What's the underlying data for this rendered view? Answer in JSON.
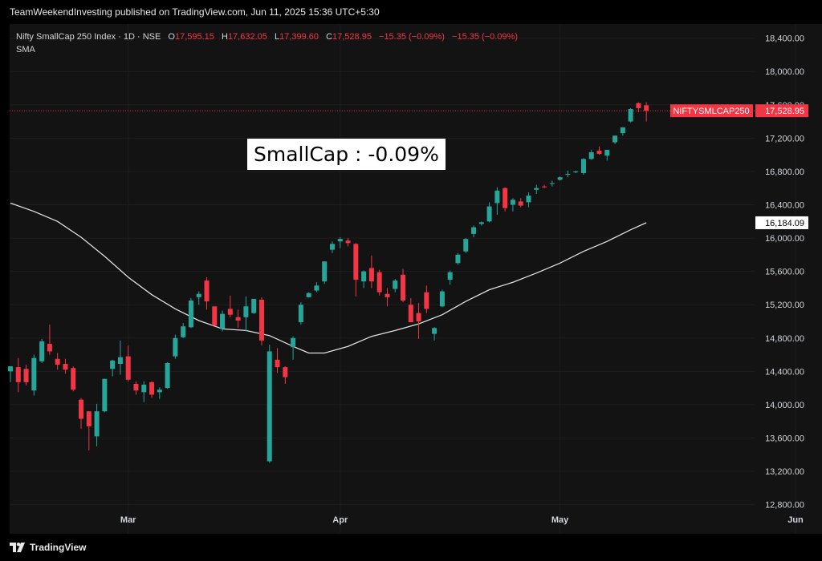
{
  "header": {
    "publisher": "TeamWeekendInvesting published on TradingView.com, Jun 11, 2025 15:36 UTC+5:30"
  },
  "legend": {
    "symbol": "Nifty SmallCap 250 Index · 1D · NSE",
    "open_label": "O",
    "open": "17,595.15",
    "high_label": "H",
    "high": "17,632.05",
    "low_label": "L",
    "low": "17,399.60",
    "close_label": "C",
    "close": "17,528.95",
    "change": "−15.35 (−0.09%)",
    "change2": "−15.35 (−0.09%)",
    "indicator": "SMA"
  },
  "annotation": "SmallCap : -0.09%",
  "footer": {
    "brand": "TradingView"
  },
  "colors": {
    "up": "#26a69a",
    "down": "#f23645",
    "sma": "#e0e0e0",
    "background": "#131313",
    "sma_badge": "#ffffff",
    "last_price_badge": "#f23645"
  },
  "chart_data": {
    "type": "candlestick",
    "symbol_badge": "NIFTYSMLCAP250",
    "last_price": 17528.95,
    "last_price_label": "17,528.95",
    "sma_last_label": "16,184.09",
    "sma_last": 16184.09,
    "ylim": [
      12450,
      18570
    ],
    "y_ticks": [
      {
        "value": 18400,
        "label": "18,400.00"
      },
      {
        "value": 18000,
        "label": "18,000.00"
      },
      {
        "value": 17600,
        "label": "17,600.00"
      },
      {
        "value": 17200,
        "label": "17,200.00"
      },
      {
        "value": 16800,
        "label": "16,800.00"
      },
      {
        "value": 16400,
        "label": "16,400.00"
      },
      {
        "value": 16000,
        "label": "16,000.00"
      },
      {
        "value": 15600,
        "label": "15,600.00"
      },
      {
        "value": 15200,
        "label": "15,200.00"
      },
      {
        "value": 14800,
        "label": "14,800.00"
      },
      {
        "value": 14400,
        "label": "14,400.00"
      },
      {
        "value": 14000,
        "label": "14,000.00"
      },
      {
        "value": 13600,
        "label": "13,600.00"
      },
      {
        "value": 13200,
        "label": "13,200.00"
      },
      {
        "value": 12800,
        "label": "12,800.00"
      }
    ],
    "x_ticks": [
      {
        "index": 15,
        "label": "Mar"
      },
      {
        "index": 42,
        "label": "Apr"
      },
      {
        "index": 70,
        "label": "May"
      },
      {
        "index": 100,
        "label": "Jun"
      }
    ],
    "x_count": 118,
    "candles": [
      {
        "i": 0,
        "o": 14400,
        "h": 14460,
        "l": 14270,
        "c": 14460
      },
      {
        "i": 1,
        "o": 14450,
        "h": 14560,
        "l": 14150,
        "c": 14270
      },
      {
        "i": 2,
        "o": 14430,
        "h": 14480,
        "l": 14230,
        "c": 14270
      },
      {
        "i": 3,
        "o": 14170,
        "h": 14600,
        "l": 14110,
        "c": 14560
      },
      {
        "i": 4,
        "o": 14520,
        "h": 14790,
        "l": 14500,
        "c": 14760
      },
      {
        "i": 5,
        "o": 14730,
        "h": 14960,
        "l": 14600,
        "c": 14640
      },
      {
        "i": 6,
        "o": 14550,
        "h": 14620,
        "l": 14420,
        "c": 14480
      },
      {
        "i": 7,
        "o": 14490,
        "h": 14550,
        "l": 14370,
        "c": 14420
      },
      {
        "i": 8,
        "o": 14440,
        "h": 14460,
        "l": 14160,
        "c": 14180
      },
      {
        "i": 9,
        "o": 14060,
        "h": 14080,
        "l": 13710,
        "c": 13830
      },
      {
        "i": 10,
        "o": 13920,
        "h": 13920,
        "l": 13450,
        "c": 13740
      },
      {
        "i": 11,
        "o": 13620,
        "h": 14010,
        "l": 13500,
        "c": 13920
      },
      {
        "i": 12,
        "o": 13920,
        "h": 14310,
        "l": 13910,
        "c": 14310
      },
      {
        "i": 13,
        "o": 14430,
        "h": 14540,
        "l": 14340,
        "c": 14530
      },
      {
        "i": 14,
        "o": 14490,
        "h": 14770,
        "l": 14360,
        "c": 14570
      },
      {
        "i": 15,
        "o": 14580,
        "h": 14710,
        "l": 14280,
        "c": 14300
      },
      {
        "i": 16,
        "o": 14250,
        "h": 14280,
        "l": 14120,
        "c": 14170
      },
      {
        "i": 17,
        "o": 14150,
        "h": 14280,
        "l": 14030,
        "c": 14240
      },
      {
        "i": 18,
        "o": 14270,
        "h": 14280,
        "l": 14080,
        "c": 14120
      },
      {
        "i": 19,
        "o": 14150,
        "h": 14210,
        "l": 14070,
        "c": 14180
      },
      {
        "i": 20,
        "o": 14200,
        "h": 14510,
        "l": 14190,
        "c": 14500
      },
      {
        "i": 21,
        "o": 14580,
        "h": 14840,
        "l": 14550,
        "c": 14800
      },
      {
        "i": 22,
        "o": 14810,
        "h": 14980,
        "l": 14800,
        "c": 14940
      },
      {
        "i": 23,
        "o": 14930,
        "h": 15280,
        "l": 14920,
        "c": 15250
      },
      {
        "i": 24,
        "o": 15290,
        "h": 15360,
        "l": 15200,
        "c": 15330
      },
      {
        "i": 25,
        "o": 15490,
        "h": 15530,
        "l": 15140,
        "c": 15240
      },
      {
        "i": 26,
        "o": 15180,
        "h": 15180,
        "l": 14990,
        "c": 14950
      },
      {
        "i": 27,
        "o": 14910,
        "h": 15130,
        "l": 14880,
        "c": 15090
      },
      {
        "i": 28,
        "o": 15150,
        "h": 15310,
        "l": 15050,
        "c": 15080
      },
      {
        "i": 29,
        "o": 15050,
        "h": 15140,
        "l": 14920,
        "c": 15010
      },
      {
        "i": 30,
        "o": 15050,
        "h": 15300,
        "l": 14880,
        "c": 15180
      },
      {
        "i": 31,
        "o": 15100,
        "h": 15270,
        "l": 15090,
        "c": 15270
      },
      {
        "i": 32,
        "o": 15260,
        "h": 15290,
        "l": 14710,
        "c": 14770
      },
      {
        "i": 33,
        "o": 13320,
        "h": 14720,
        "l": 13300,
        "c": 14640
      },
      {
        "i": 34,
        "o": 14540,
        "h": 14680,
        "l": 14380,
        "c": 14450
      },
      {
        "i": 35,
        "o": 14450,
        "h": 14460,
        "l": 14250,
        "c": 14330
      },
      {
        "i": 36,
        "o": 14690,
        "h": 14820,
        "l": 14540,
        "c": 14800
      },
      {
        "i": 37,
        "o": 14990,
        "h": 15230,
        "l": 14960,
        "c": 15200
      },
      {
        "i": 38,
        "o": 15290,
        "h": 15350,
        "l": 15290,
        "c": 15340
      },
      {
        "i": 39,
        "o": 15370,
        "h": 15470,
        "l": 15350,
        "c": 15430
      },
      {
        "i": 40,
        "o": 15480,
        "h": 15720,
        "l": 15450,
        "c": 15720
      },
      {
        "i": 41,
        "o": 15860,
        "h": 15960,
        "l": 15820,
        "c": 15930
      },
      {
        "i": 42,
        "o": 15960,
        "h": 16010,
        "l": 15880,
        "c": 15990
      },
      {
        "i": 43,
        "o": 15970,
        "h": 16000,
        "l": 15900,
        "c": 15940
      },
      {
        "i": 44,
        "o": 15930,
        "h": 15940,
        "l": 15300,
        "c": 15500
      },
      {
        "i": 45,
        "o": 15480,
        "h": 15610,
        "l": 15400,
        "c": 15600
      },
      {
        "i": 46,
        "o": 15640,
        "h": 15790,
        "l": 15400,
        "c": 15480
      },
      {
        "i": 47,
        "o": 15590,
        "h": 15620,
        "l": 15310,
        "c": 15350
      },
      {
        "i": 48,
        "o": 15330,
        "h": 15400,
        "l": 15180,
        "c": 15290
      },
      {
        "i": 49,
        "o": 15390,
        "h": 15510,
        "l": 15350,
        "c": 15490
      },
      {
        "i": 50,
        "o": 15560,
        "h": 15630,
        "l": 15230,
        "c": 15250
      },
      {
        "i": 51,
        "o": 15200,
        "h": 15280,
        "l": 14990,
        "c": 14990
      },
      {
        "i": 52,
        "o": 15100,
        "h": 15220,
        "l": 14790,
        "c": 15000
      },
      {
        "i": 53,
        "o": 15350,
        "h": 15430,
        "l": 15100,
        "c": 15150
      },
      {
        "i": 54,
        "o": 14850,
        "h": 14930,
        "l": 14770,
        "c": 14920
      },
      {
        "i": 55,
        "o": 15180,
        "h": 15380,
        "l": 15170,
        "c": 15360
      },
      {
        "i": 56,
        "o": 15500,
        "h": 15610,
        "l": 15440,
        "c": 15590
      },
      {
        "i": 57,
        "o": 15700,
        "h": 15820,
        "l": 15680,
        "c": 15800
      },
      {
        "i": 58,
        "o": 15840,
        "h": 16000,
        "l": 15820,
        "c": 15990
      },
      {
        "i": 59,
        "o": 16050,
        "h": 16150,
        "l": 16010,
        "c": 16130
      },
      {
        "i": 60,
        "o": 16170,
        "h": 16200,
        "l": 16150,
        "c": 16190
      },
      {
        "i": 61,
        "o": 16200,
        "h": 16430,
        "l": 16190,
        "c": 16380
      },
      {
        "i": 62,
        "o": 16420,
        "h": 16610,
        "l": 16280,
        "c": 16570
      },
      {
        "i": 63,
        "o": 16600,
        "h": 16610,
        "l": 16320,
        "c": 16360
      },
      {
        "i": 64,
        "o": 16400,
        "h": 16480,
        "l": 16320,
        "c": 16460
      },
      {
        "i": 65,
        "o": 16440,
        "h": 16480,
        "l": 16370,
        "c": 16390
      },
      {
        "i": 66,
        "o": 16430,
        "h": 16550,
        "l": 16370,
        "c": 16510
      },
      {
        "i": 67,
        "o": 16580,
        "h": 16640,
        "l": 16530,
        "c": 16600
      },
      {
        "i": 68,
        "o": 16620,
        "h": 16640,
        "l": 16600,
        "c": 16610
      },
      {
        "i": 69,
        "o": 16650,
        "h": 16690,
        "l": 16620,
        "c": 16660
      },
      {
        "i": 70,
        "o": 16700,
        "h": 16740,
        "l": 16690,
        "c": 16730
      },
      {
        "i": 71,
        "o": 16760,
        "h": 16810,
        "l": 16730,
        "c": 16770
      },
      {
        "i": 72,
        "o": 16790,
        "h": 16810,
        "l": 16780,
        "c": 16800
      },
      {
        "i": 73,
        "o": 16780,
        "h": 16960,
        "l": 16760,
        "c": 16950
      },
      {
        "i": 74,
        "o": 16950,
        "h": 17060,
        "l": 16940,
        "c": 17030
      },
      {
        "i": 75,
        "o": 17050,
        "h": 17100,
        "l": 17000,
        "c": 17010
      },
      {
        "i": 76,
        "o": 16990,
        "h": 17060,
        "l": 16930,
        "c": 17060
      },
      {
        "i": 77,
        "o": 17150,
        "h": 17230,
        "l": 17130,
        "c": 17230
      },
      {
        "i": 78,
        "o": 17260,
        "h": 17330,
        "l": 17230,
        "c": 17330
      },
      {
        "i": 79,
        "o": 17400,
        "h": 17560,
        "l": 17390,
        "c": 17550
      },
      {
        "i": 80,
        "o": 17620,
        "h": 17630,
        "l": 17510,
        "c": 17560
      },
      {
        "i": 81,
        "o": 17595.15,
        "h": 17632.05,
        "l": 17399.6,
        "c": 17528.95
      }
    ],
    "sma": [
      {
        "i": 0,
        "v": 16420
      },
      {
        "i": 3,
        "v": 16320
      },
      {
        "i": 6,
        "v": 16200
      },
      {
        "i": 9,
        "v": 16010
      },
      {
        "i": 12,
        "v": 15780
      },
      {
        "i": 15,
        "v": 15530
      },
      {
        "i": 18,
        "v": 15320
      },
      {
        "i": 21,
        "v": 15150
      },
      {
        "i": 24,
        "v": 15010
      },
      {
        "i": 27,
        "v": 14910
      },
      {
        "i": 30,
        "v": 14890
      },
      {
        "i": 33,
        "v": 14830
      },
      {
        "i": 36,
        "v": 14700
      },
      {
        "i": 38,
        "v": 14620
      },
      {
        "i": 40,
        "v": 14620
      },
      {
        "i": 43,
        "v": 14700
      },
      {
        "i": 46,
        "v": 14820
      },
      {
        "i": 49,
        "v": 14890
      },
      {
        "i": 52,
        "v": 14970
      },
      {
        "i": 55,
        "v": 15080
      },
      {
        "i": 58,
        "v": 15240
      },
      {
        "i": 61,
        "v": 15380
      },
      {
        "i": 64,
        "v": 15470
      },
      {
        "i": 67,
        "v": 15580
      },
      {
        "i": 70,
        "v": 15700
      },
      {
        "i": 73,
        "v": 15840
      },
      {
        "i": 76,
        "v": 15960
      },
      {
        "i": 79,
        "v": 16100
      },
      {
        "i": 81,
        "v": 16184.09
      }
    ]
  }
}
